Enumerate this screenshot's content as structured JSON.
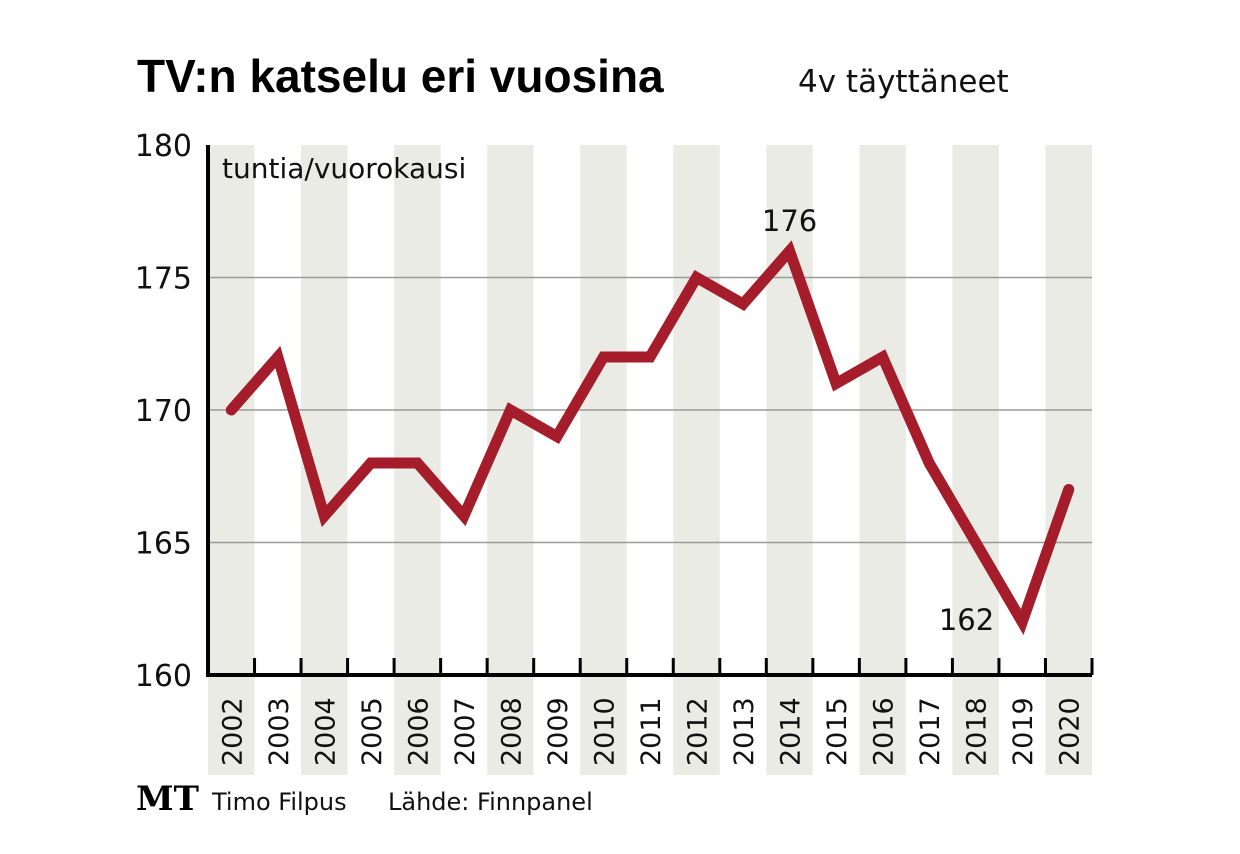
{
  "chart_data": {
    "type": "line",
    "title": "TV:n katselu eri vuosina",
    "subtitle": "4v täyttäneet",
    "ylabel": "tuntia/vuorokausi",
    "xlabel": "",
    "ylim": [
      160,
      180
    ],
    "yticks": [
      160,
      165,
      170,
      175,
      180
    ],
    "categories": [
      "2002",
      "2003",
      "2004",
      "2005",
      "2006",
      "2007",
      "2008",
      "2009",
      "2010",
      "2011",
      "2012",
      "2013",
      "2014",
      "2015",
      "2016",
      "2017",
      "2018",
      "2019",
      "2020"
    ],
    "values": [
      170,
      172,
      166,
      168,
      168,
      166,
      170,
      169,
      172,
      172,
      175,
      174,
      176,
      171,
      172,
      168,
      165,
      162,
      167
    ],
    "annotations": [
      {
        "year": "2014",
        "text": "176"
      },
      {
        "year": "2019",
        "text": "162"
      }
    ],
    "grid": true,
    "line_color": "#a51c2a",
    "stripe_color": "#ebebe6"
  },
  "footer": {
    "logo": "MT",
    "author": "Timo Filpus",
    "source": "Lähde: Finnpanel"
  }
}
